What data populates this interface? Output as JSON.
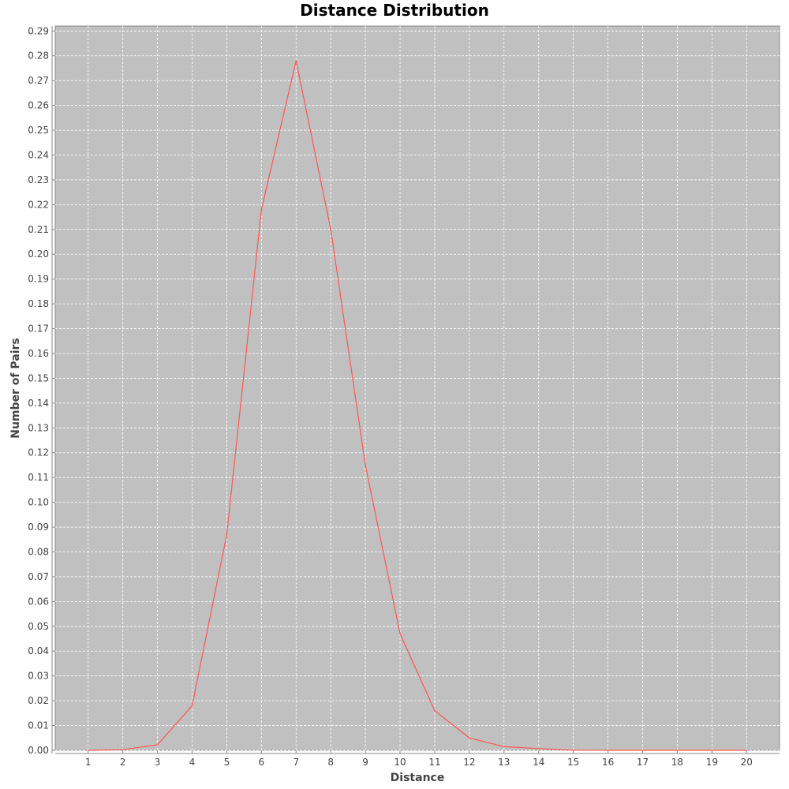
{
  "colors": {
    "plot_background": "#c0c0c0",
    "gridline": "#ffffff",
    "series_line": "#ff5555",
    "axis_line": "#888888"
  },
  "chart_data": {
    "type": "line",
    "title": "Distance Distribution",
    "xlabel": "Distance",
    "ylabel": "Number of Pairs",
    "x": [
      1,
      2,
      3,
      4,
      5,
      6,
      7,
      8,
      9,
      10,
      11,
      12,
      13,
      14,
      15,
      16,
      17,
      18,
      19,
      20
    ],
    "series": [
      {
        "values": [
          0.0,
          0.0003,
          0.0022,
          0.018,
          0.087,
          0.218,
          0.278,
          0.21,
          0.115,
          0.047,
          0.016,
          0.005,
          0.0015,
          0.0007,
          0.0001,
          0.0,
          0.0,
          0.0,
          0.0,
          0.0
        ]
      }
    ],
    "xlim": [
      0.05,
      20.95
    ],
    "ylim": [
      0.0,
      0.292
    ],
    "x_ticks": [
      "1",
      "2",
      "3",
      "4",
      "5",
      "6",
      "7",
      "8",
      "9",
      "10",
      "11",
      "12",
      "13",
      "14",
      "15",
      "16",
      "17",
      "18",
      "19",
      "20"
    ],
    "y_ticks": [
      "0.00",
      "0.01",
      "0.02",
      "0.03",
      "0.04",
      "0.05",
      "0.06",
      "0.07",
      "0.08",
      "0.09",
      "0.10",
      "0.11",
      "0.12",
      "0.13",
      "0.14",
      "0.15",
      "0.16",
      "0.17",
      "0.18",
      "0.19",
      "0.20",
      "0.21",
      "0.22",
      "0.23",
      "0.24",
      "0.25",
      "0.26",
      "0.27",
      "0.28",
      "0.29"
    ],
    "grid": true,
    "legend": "none"
  }
}
